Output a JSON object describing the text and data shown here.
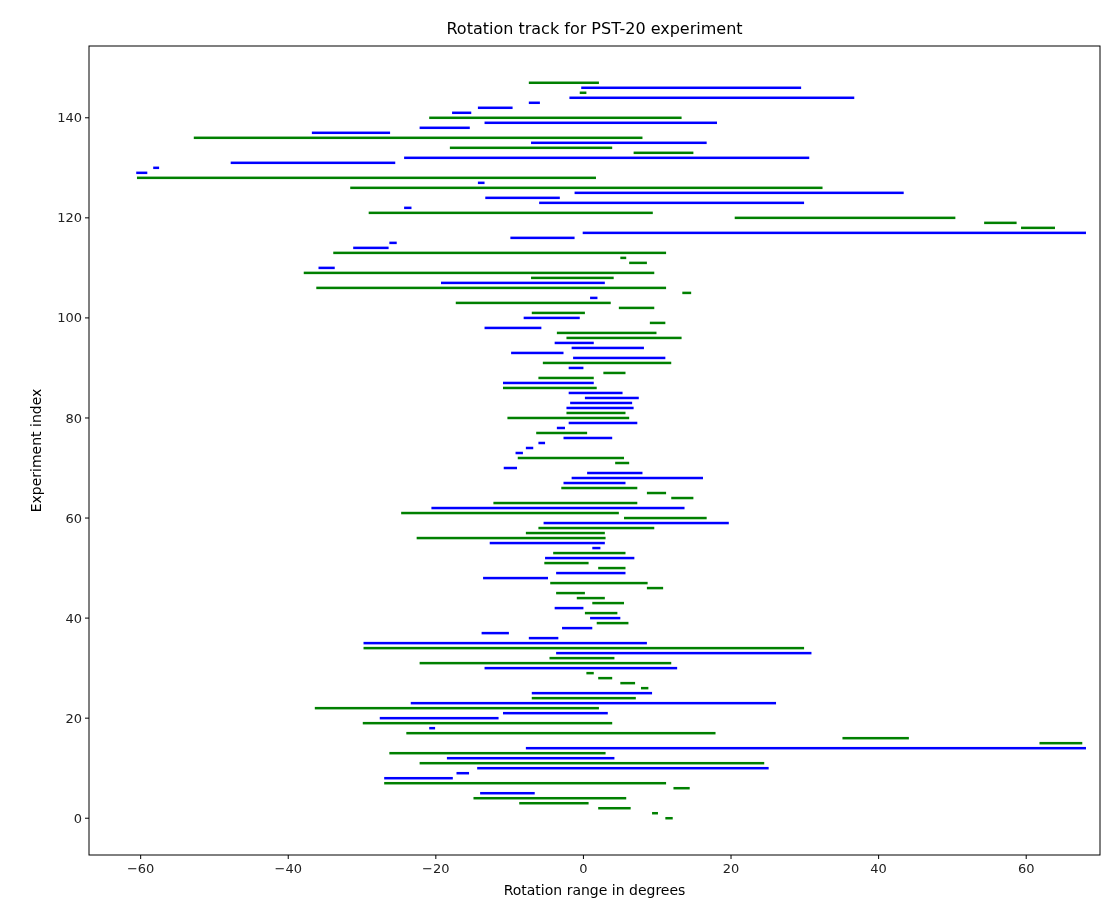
{
  "chart_data": {
    "type": "bar",
    "orientation": "horizontal",
    "title": "Rotation track for PST-20 experiment",
    "xlabel": "Rotation range in degrees",
    "ylabel": "Experiment index",
    "xlim": [
      -67,
      70
    ],
    "xticks": [
      -60,
      -40,
      -20,
      0,
      20,
      40,
      60
    ],
    "ylim": [
      -7.35,
      154.35
    ],
    "yticks": [
      0,
      20,
      40,
      60,
      80,
      100,
      120,
      140
    ],
    "grid": false,
    "x": [
      0,
      1,
      2,
      3,
      4,
      5,
      6,
      7,
      8,
      9,
      10,
      11,
      12,
      13,
      14,
      15,
      16,
      17,
      18,
      19,
      20,
      21,
      22,
      23,
      24,
      25,
      26,
      27,
      28,
      29,
      30,
      31,
      32,
      33,
      34,
      35,
      36,
      37,
      38,
      39,
      40,
      41,
      42,
      43,
      44,
      45,
      46,
      47,
      48,
      49,
      50,
      51,
      52,
      53,
      54,
      55,
      56,
      57,
      58,
      59,
      60,
      61,
      62,
      63,
      64,
      65,
      66,
      67,
      68,
      69,
      70,
      71,
      72,
      73,
      74,
      75,
      76,
      77,
      78,
      79,
      80,
      81,
      82,
      83,
      84,
      85,
      86,
      87,
      88,
      89,
      90,
      91,
      92,
      93,
      94,
      95,
      96,
      97,
      98,
      99,
      100,
      101,
      102,
      103,
      104,
      105,
      106,
      107,
      108,
      109,
      110,
      111,
      112,
      113,
      114,
      115,
      116,
      117,
      118,
      119,
      120,
      121,
      122,
      123,
      124,
      125,
      126,
      127,
      128,
      129,
      130,
      131,
      132,
      133,
      134,
      135,
      136,
      137,
      138,
      139,
      140,
      141,
      142,
      143,
      144,
      145,
      146,
      147
    ],
    "base": [
      11.1,
      9.3,
      2.0,
      -8.7,
      -14.9,
      -14.0,
      12.2,
      -27.0,
      -27.0,
      -17.2,
      -14.4,
      -22.2,
      -18.5,
      -26.3,
      -7.8,
      61.8,
      35.1,
      -24.0,
      -20.9,
      -29.9,
      -27.6,
      -10.9,
      -36.4,
      -23.4,
      -7.0,
      -7.0,
      7.8,
      5.0,
      2.0,
      0.4,
      -13.4,
      -22.2,
      -4.6,
      -3.7,
      -29.8,
      -29.8,
      -7.4,
      -13.8,
      -2.9,
      1.8,
      0.9,
      0.2,
      -3.9,
      1.2,
      -0.9,
      -3.7,
      8.6,
      -4.5,
      -13.6,
      -3.7,
      2.0,
      -5.3,
      -5.2,
      -4.1,
      1.2,
      -12.7,
      -22.6,
      -7.8,
      -6.1,
      -5.4,
      5.5,
      -24.7,
      -20.6,
      -12.2,
      11.9,
      8.6,
      -3.0,
      -2.7,
      -1.6,
      0.5,
      -10.8,
      4.3,
      -8.9,
      -9.2,
      -7.8,
      -6.1,
      -2.7,
      -6.4,
      -3.6,
      -2.0,
      -10.3,
      -2.3,
      -2.3,
      -1.8,
      0.2,
      -2.0,
      -10.9,
      -10.9,
      -6.1,
      2.7,
      -2.0,
      -5.5,
      -1.4,
      -9.8,
      -1.6,
      -3.9,
      -2.3,
      -3.6,
      -13.4,
      9.0,
      -8.1,
      -7.0,
      4.8,
      -17.3,
      0.9,
      13.4,
      -36.2,
      -19.3,
      -7.1,
      -37.9,
      -35.9,
      6.2,
      5.0,
      -33.9,
      -31.2,
      -26.3,
      -9.9,
      -0.1,
      59.3,
      54.3,
      20.5,
      -29.1,
      -24.3,
      -6.0,
      -13.3,
      -1.2,
      -31.6,
      -14.3,
      -60.5,
      -60.6,
      -58.3,
      -47.8,
      -24.3,
      6.8,
      -18.1,
      -7.1,
      -52.8,
      -36.8,
      -22.2,
      -13.4,
      -20.9,
      -17.8,
      -14.3,
      -7.4,
      -1.9,
      -0.5,
      -0.3,
      -7.4
    ],
    "values": [
      1.0,
      0.8,
      4.4,
      9.4,
      20.7,
      7.4,
      2.2,
      38.2,
      9.3,
      1.7,
      39.5,
      46.7,
      22.7,
      29.3,
      75.9,
      5.8,
      9.0,
      41.9,
      0.8,
      33.8,
      16.1,
      14.2,
      38.5,
      49.5,
      14.1,
      16.3,
      1.0,
      2.0,
      1.9,
      1.0,
      26.1,
      34.1,
      8.8,
      34.6,
      59.7,
      38.4,
      4.0,
      3.7,
      4.1,
      4.3,
      4.1,
      4.4,
      3.9,
      4.3,
      3.8,
      3.9,
      2.2,
      13.2,
      8.8,
      9.4,
      3.7,
      6.0,
      12.1,
      9.8,
      1.1,
      15.6,
      25.6,
      10.7,
      15.7,
      25.1,
      11.2,
      29.5,
      34.3,
      19.5,
      3.0,
      2.6,
      10.3,
      8.4,
      17.8,
      7.5,
      1.8,
      1.9,
      14.4,
      1.0,
      1.0,
      0.9,
      6.6,
      6.9,
      1.1,
      9.3,
      16.5,
      8.0,
      9.1,
      8.4,
      7.3,
      7.3,
      12.7,
      12.3,
      7.5,
      3.0,
      2.0,
      17.4,
      12.5,
      7.1,
      9.8,
      5.3,
      15.6,
      13.5,
      7.7,
      2.1,
      7.6,
      7.2,
      4.8,
      21.0,
      1.0,
      1.2,
      47.4,
      22.2,
      11.2,
      47.5,
      2.2,
      2.4,
      0.8,
      45.1,
      4.8,
      1.0,
      8.7,
      68.2,
      4.6,
      4.4,
      29.9,
      38.5,
      1.0,
      35.9,
      10.1,
      44.6,
      64.0,
      0.9,
      62.2,
      1.5,
      0.8,
      22.3,
      54.9,
      8.1,
      22.0,
      23.8,
      60.8,
      10.6,
      6.8,
      31.5,
      34.2,
      2.6,
      4.7,
      1.5,
      38.6,
      0.9,
      29.8,
      9.5
    ],
    "colors": [
      "#008000",
      "#008000",
      "#008000",
      "#008000",
      "#008000",
      "#0000ff",
      "#008000",
      "#008000",
      "#0000ff",
      "#0000ff",
      "#0000ff",
      "#008000",
      "#0000ff",
      "#008000",
      "#0000ff",
      "#008000",
      "#008000",
      "#008000",
      "#0000ff",
      "#008000",
      "#0000ff",
      "#0000ff",
      "#008000",
      "#0000ff",
      "#008000",
      "#0000ff",
      "#008000",
      "#008000",
      "#008000",
      "#008000",
      "#0000ff",
      "#008000",
      "#008000",
      "#0000ff",
      "#008000",
      "#0000ff",
      "#0000ff",
      "#0000ff",
      "#0000ff",
      "#008000",
      "#0000ff",
      "#008000",
      "#0000ff",
      "#008000",
      "#008000",
      "#008000",
      "#008000",
      "#008000",
      "#0000ff",
      "#0000ff",
      "#008000",
      "#008000",
      "#0000ff",
      "#008000",
      "#0000ff",
      "#0000ff",
      "#008000",
      "#008000",
      "#008000",
      "#0000ff",
      "#008000",
      "#008000",
      "#0000ff",
      "#008000",
      "#008000",
      "#008000",
      "#008000",
      "#0000ff",
      "#0000ff",
      "#0000ff",
      "#0000ff",
      "#008000",
      "#008000",
      "#0000ff",
      "#0000ff",
      "#0000ff",
      "#0000ff",
      "#008000",
      "#0000ff",
      "#0000ff",
      "#008000",
      "#008000",
      "#0000ff",
      "#0000ff",
      "#0000ff",
      "#0000ff",
      "#008000",
      "#0000ff",
      "#008000",
      "#008000",
      "#0000ff",
      "#008000",
      "#0000ff",
      "#0000ff",
      "#0000ff",
      "#0000ff",
      "#008000",
      "#008000",
      "#0000ff",
      "#008000",
      "#0000ff",
      "#008000",
      "#008000",
      "#008000",
      "#0000ff",
      "#008000",
      "#008000",
      "#0000ff",
      "#008000",
      "#008000",
      "#0000ff",
      "#008000",
      "#008000",
      "#008000",
      "#0000ff",
      "#0000ff",
      "#0000ff",
      "#0000ff",
      "#008000",
      "#008000",
      "#008000",
      "#008000",
      "#0000ff",
      "#0000ff",
      "#0000ff",
      "#0000ff",
      "#008000",
      "#0000ff",
      "#008000",
      "#0000ff",
      "#0000ff",
      "#0000ff",
      "#0000ff",
      "#008000",
      "#008000",
      "#0000ff",
      "#008000",
      "#0000ff",
      "#0000ff",
      "#0000ff",
      "#008000",
      "#0000ff",
      "#0000ff",
      "#0000ff",
      "#0000ff",
      "#008000",
      "#0000ff",
      "#008000"
    ]
  }
}
